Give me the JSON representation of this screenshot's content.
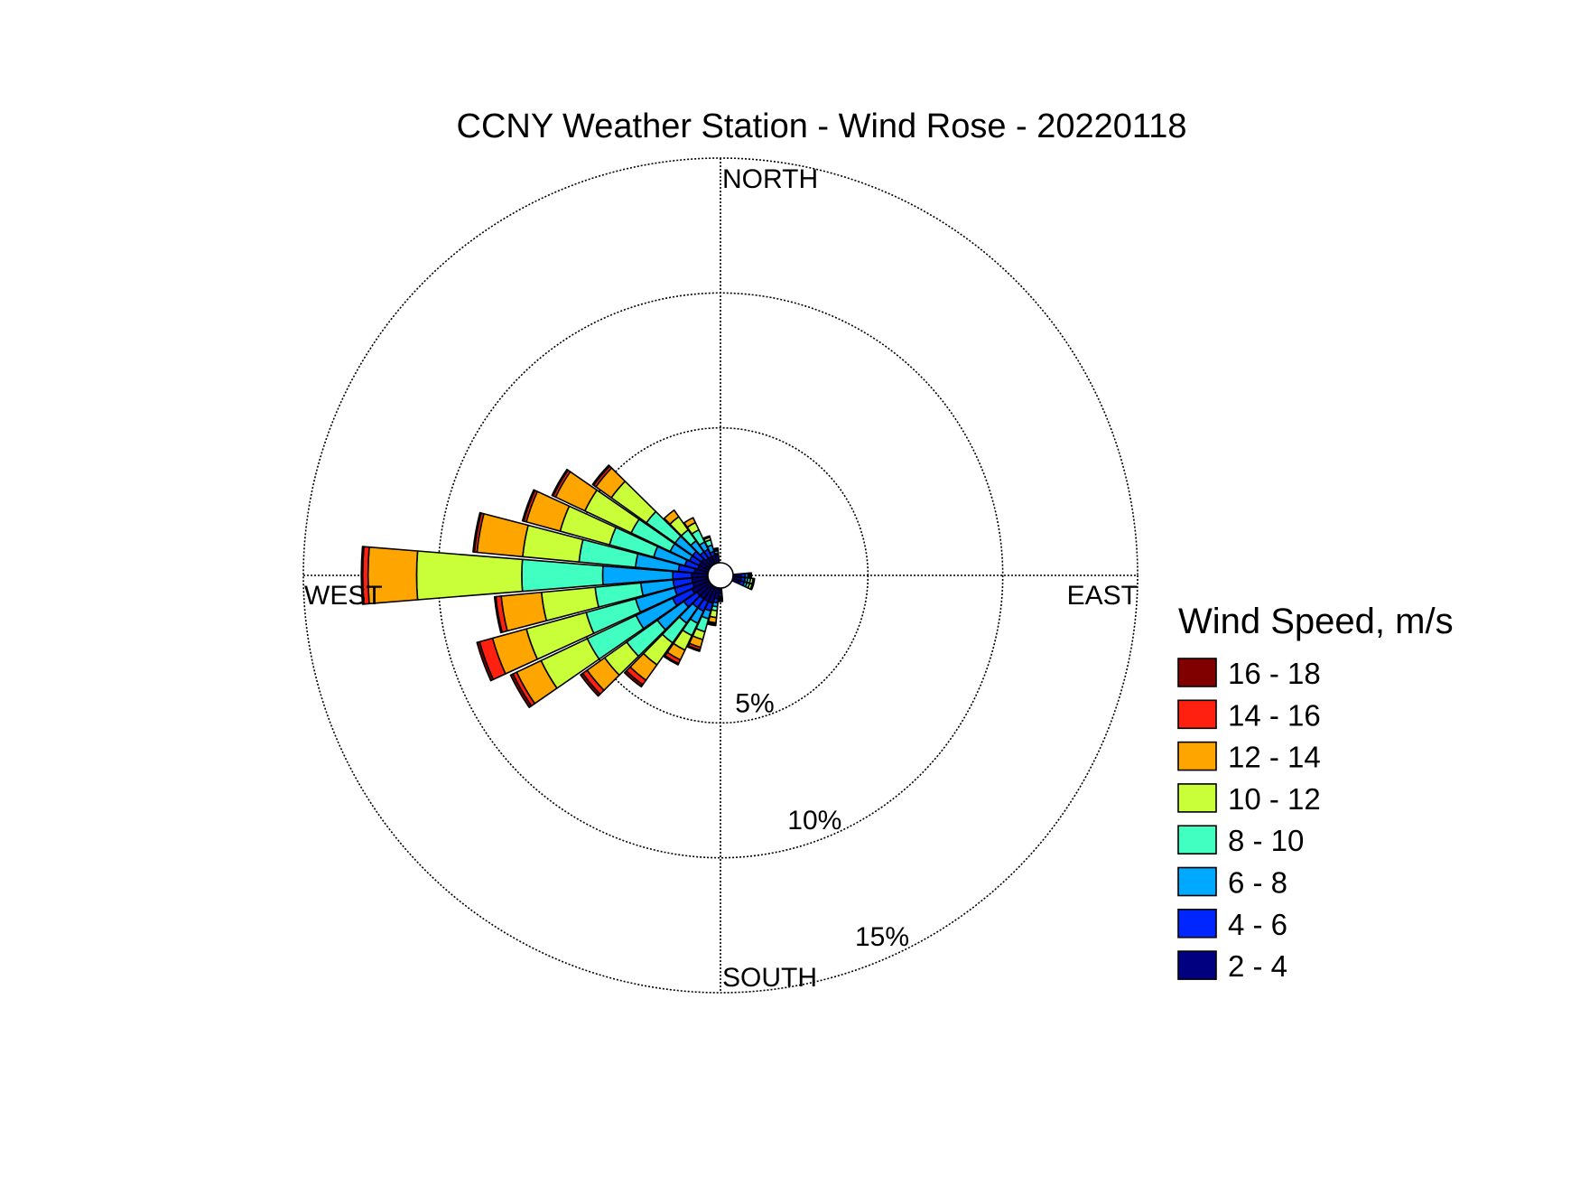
{
  "chart_data": {
    "type": "wind-rose",
    "title": "CCNY Weather Station - Wind Rose - 20220118",
    "compass": {
      "north": "NORTH",
      "south": "SOUTH",
      "east": "EAST",
      "west": "WEST"
    },
    "rings": [
      {
        "value": 5,
        "label": "5%"
      },
      {
        "value": 10,
        "label": "10%"
      },
      {
        "value": 15,
        "label": "15%"
      }
    ],
    "rmax": 15,
    "legend_title": "Wind Speed, m/s",
    "speed_bins": [
      {
        "label": "2 - 4",
        "color": "#000080"
      },
      {
        "label": "4 - 6",
        "color": "#0026ff"
      },
      {
        "label": "6 - 8",
        "color": "#00a8ff"
      },
      {
        "label": "8 - 10",
        "color": "#40ffc0"
      },
      {
        "label": "10 - 12",
        "color": "#c8ff38"
      },
      {
        "label": "12 - 14",
        "color": "#ffa500"
      },
      {
        "label": "14 - 16",
        "color": "#ff2010"
      },
      {
        "label": "16 - 18",
        "color": "#800000"
      }
    ],
    "directions": [
      {
        "deg": 90,
        "cumulative": [
          0.3,
          0.45,
          0.55,
          0.6,
          0.65,
          0.68,
          0.68,
          0.68
        ]
      },
      {
        "deg": 100,
        "cumulative": [
          0.3,
          0.45,
          0.55,
          0.65,
          0.75,
          0.8,
          0.8,
          0.8
        ]
      },
      {
        "deg": 110,
        "cumulative": [
          0.3,
          0.45,
          0.55,
          0.65,
          0.75,
          0.8,
          0.8,
          0.8
        ]
      },
      {
        "deg": 180,
        "cumulative": [
          0.2,
          0.3,
          0.35,
          0.4,
          0.45,
          0.5,
          0.5,
          0.5
        ]
      },
      {
        "deg": 190,
        "cumulative": [
          0.4,
          0.55,
          0.7,
          0.85,
          1.1,
          1.3,
          1.35,
          1.4
        ]
      },
      {
        "deg": 200,
        "cumulative": [
          0.6,
          0.9,
          1.2,
          1.7,
          2.0,
          2.3,
          2.4,
          2.45
        ]
      },
      {
        "deg": 210,
        "cumulative": [
          0.6,
          1.0,
          1.5,
          2.0,
          2.6,
          3.0,
          3.15,
          3.2
        ]
      },
      {
        "deg": 220,
        "cumulative": [
          0.6,
          1.0,
          1.7,
          2.6,
          3.6,
          4.3,
          4.5,
          4.6
        ]
      },
      {
        "deg": 230,
        "cumulative": [
          0.6,
          1.2,
          2.4,
          3.8,
          4.8,
          5.6,
          5.8,
          5.9
        ]
      },
      {
        "deg": 240,
        "cumulative": [
          0.7,
          1.5,
          3.0,
          5.0,
          6.9,
          7.9,
          8.05,
          8.15
        ]
      },
      {
        "deg": 250,
        "cumulative": [
          0.6,
          1.3,
          2.8,
          4.7,
          7.0,
          8.3,
          8.8,
          8.9
        ]
      },
      {
        "deg": 260,
        "cumulative": [
          0.6,
          1.3,
          2.5,
          4.2,
          6.2,
          7.7,
          7.9,
          7.95
        ]
      },
      {
        "deg": 270,
        "cumulative": [
          0.6,
          1.3,
          3.9,
          6.9,
          10.8,
          12.6,
          12.8,
          12.85
        ]
      },
      {
        "deg": 280,
        "cumulative": [
          0.5,
          1.1,
          2.7,
          4.8,
          6.9,
          8.6,
          8.7,
          8.75
        ]
      },
      {
        "deg": 290,
        "cumulative": [
          0.4,
          0.9,
          2.1,
          3.8,
          5.7,
          7.0,
          7.1,
          7.15
        ]
      },
      {
        "deg": 300,
        "cumulative": [
          0.4,
          0.8,
          1.6,
          3.2,
          5.1,
          6.3,
          6.4,
          6.45
        ]
      },
      {
        "deg": 310,
        "cumulative": [
          0.4,
          0.8,
          1.6,
          2.9,
          4.5,
          5.2,
          5.3,
          5.35
        ]
      },
      {
        "deg": 320,
        "cumulative": [
          0.3,
          0.6,
          1.1,
          1.6,
          2.2,
          2.5,
          2.5,
          2.5
        ]
      },
      {
        "deg": 330,
        "cumulative": [
          0.3,
          0.6,
          0.9,
          1.4,
          1.7,
          1.9,
          1.9,
          1.9
        ]
      },
      {
        "deg": 340,
        "cumulative": [
          0.3,
          0.45,
          0.7,
          0.9,
          1.0,
          1.05,
          1.05,
          1.05
        ]
      },
      {
        "deg": 350,
        "cumulative": [
          0.3,
          0.35,
          0.45,
          0.5,
          0.55,
          0.55,
          0.55,
          0.55
        ]
      }
    ]
  }
}
